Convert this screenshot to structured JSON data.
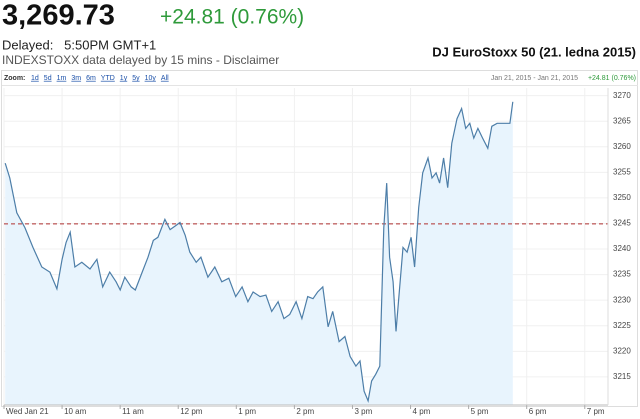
{
  "header": {
    "price": "3,269.73",
    "change": "+24.81 (0.76%)",
    "delayed": "Delayed:   5:50PM GMT+1",
    "source": "INDEXSTOXX data delayed by 15 mins - Disclaimer",
    "title": "DJ EuroStoxx 50 (21. ledna 2015)"
  },
  "chart_data": {
    "type": "line",
    "zoom_label": "Zoom:",
    "zoom_options": [
      "1d",
      "5d",
      "1m",
      "3m",
      "6m",
      "YTD",
      "1y",
      "5y",
      "10y",
      "All"
    ],
    "date_range": "Jan 21, 2015 - Jan 21, 2015",
    "x": [
      9.02,
      9.1,
      9.22,
      9.36,
      9.5,
      9.65,
      9.79,
      9.91,
      10.0,
      10.07,
      10.14,
      10.22,
      10.34,
      10.48,
      10.6,
      10.7,
      10.82,
      10.93,
      11.0,
      11.08,
      11.19,
      11.26,
      11.38,
      11.48,
      11.57,
      11.65,
      11.77,
      11.86,
      11.96,
      12.03,
      12.12,
      12.2,
      12.31,
      12.39,
      12.51,
      12.63,
      12.75,
      12.87,
      12.99,
      13.1,
      13.2,
      13.29,
      13.41,
      13.51,
      13.61,
      13.72,
      13.82,
      13.92,
      14.03,
      14.13,
      14.23,
      14.32,
      14.4,
      14.49,
      14.58,
      14.66,
      14.77,
      14.87,
      14.96,
      15.06,
      15.13,
      15.2,
      15.27,
      15.33,
      15.4,
      15.47,
      15.54,
      15.59,
      15.64,
      15.7,
      15.75,
      15.8,
      15.87,
      15.94,
      16.01,
      16.07,
      16.14,
      16.21,
      16.3,
      16.37,
      16.44,
      16.5,
      16.57,
      16.64,
      16.71,
      16.8,
      16.88,
      16.95,
      17.02,
      17.09,
      17.16,
      17.24,
      17.33,
      17.4,
      17.49,
      17.71,
      17.76
    ],
    "values": [
      3256.8,
      3253.9,
      3247.1,
      3244.2,
      3240.3,
      3236.5,
      3235.5,
      3232.2,
      3238.0,
      3241.3,
      3243.3,
      3236.5,
      3237.4,
      3236.1,
      3238.0,
      3232.6,
      3235.5,
      3233.6,
      3232.0,
      3234.5,
      3232.6,
      3232.0,
      3235.5,
      3238.4,
      3241.7,
      3242.3,
      3245.8,
      3243.8,
      3244.6,
      3245.2,
      3242.7,
      3239.4,
      3237.4,
      3238.4,
      3234.5,
      3236.5,
      3233.6,
      3234.3,
      3230.7,
      3232.6,
      3229.7,
      3231.6,
      3230.7,
      3231.0,
      3227.8,
      3229.7,
      3226.4,
      3227.2,
      3229.7,
      3226.4,
      3230.7,
      3230.3,
      3231.6,
      3232.6,
      3224.8,
      3227.8,
      3221.9,
      3222.9,
      3219.0,
      3217.1,
      3218.1,
      3212.2,
      3210.3,
      3214.2,
      3215.5,
      3217.1,
      3244.2,
      3252.9,
      3238.4,
      3233.6,
      3223.9,
      3230.7,
      3240.3,
      3239.4,
      3242.3,
      3236.5,
      3248.1,
      3254.9,
      3257.8,
      3253.9,
      3254.9,
      3252.9,
      3257.8,
      3252.0,
      3260.7,
      3265.5,
      3267.5,
      3263.6,
      3264.6,
      3261.7,
      3263.6,
      3261.7,
      3259.7,
      3264.0,
      3264.6,
      3264.6,
      3268.8
    ],
    "color": "#4d7ea8",
    "fill": "#e8f4fd",
    "reference_line": 3244.92,
    "xlim": [
      9,
      19.4
    ],
    "ylim": [
      3209.5,
      3271.5
    ],
    "xticks": [
      {
        "value": 9,
        "label": "Wed Jan 21"
      },
      {
        "value": 10,
        "label": "10 am"
      },
      {
        "value": 11,
        "label": "11 am"
      },
      {
        "value": 12,
        "label": "12 pm"
      },
      {
        "value": 13,
        "label": "1 pm"
      },
      {
        "value": 14,
        "label": "2 pm"
      },
      {
        "value": 15,
        "label": "3 pm"
      },
      {
        "value": 16,
        "label": "4 pm"
      },
      {
        "value": 17,
        "label": "5 pm"
      },
      {
        "value": 18,
        "label": "6 pm"
      },
      {
        "value": 19,
        "label": "7 pm"
      }
    ],
    "yticks": [
      3215,
      3220,
      3225,
      3230,
      3235,
      3240,
      3245,
      3250,
      3255,
      3260,
      3265,
      3270
    ],
    "grid": true
  }
}
